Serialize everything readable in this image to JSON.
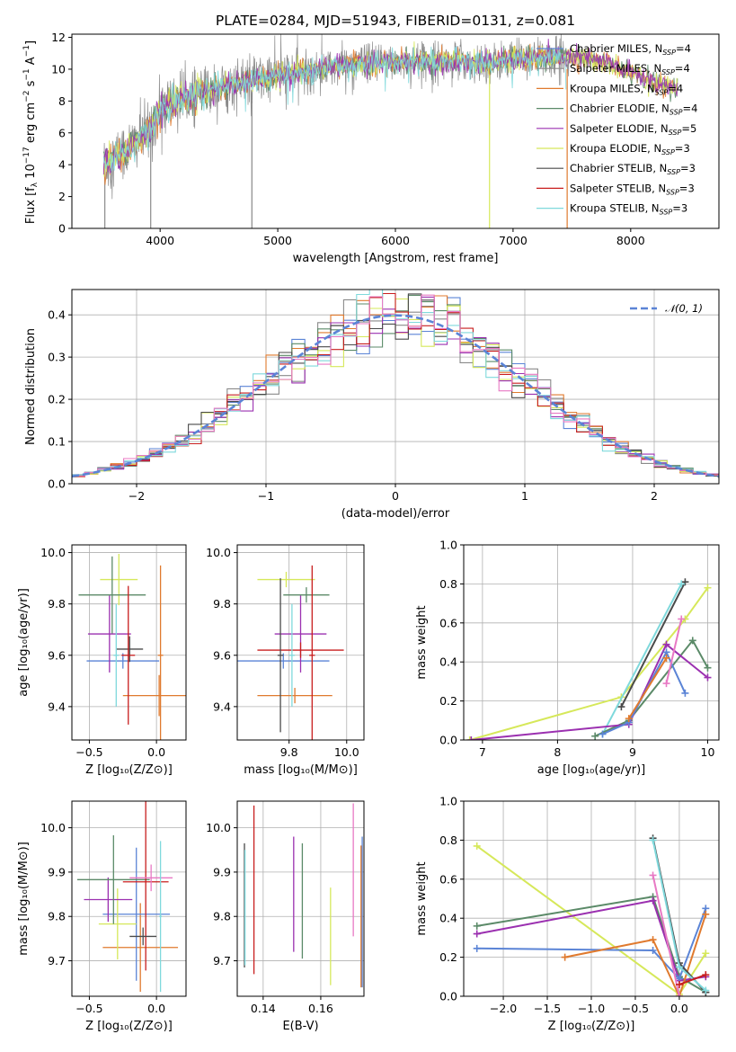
{
  "figure": {
    "title": "PLATE=0284, MJD=51943, FIBERID=0131, z=0.081"
  },
  "colors": {
    "chabrier_miles": "#5b84d6",
    "salpeter_miles": "#8a8a8a",
    "kroupa_miles": "#e07a2e",
    "chabrier_elodie": "#5b8a68",
    "salpeter_elodie": "#9b30b0",
    "kroupa_elodie": "#d6e85a",
    "chabrier_stelib": "#4a4a4a",
    "salpeter_stelib": "#c81e1e",
    "kroupa_stelib": "#7fd9dc",
    "normal_curve": "#5b84d6",
    "pink": "#e879c4"
  },
  "chart_data": [
    {
      "id": "spectrum",
      "type": "line",
      "xlabel": "wavelength [Angstrom, rest frame]",
      "ylabel": "Flux [f_λ 10^-17 erg cm^-2 s^-1 A^-1]",
      "ylabel_parts": {
        "a": "Flux [f",
        "sub1": "λ",
        "b": "10",
        "sup1": "−17",
        "c": " erg cm",
        "sup2": "−2",
        "d": " s",
        "sup3": "−1",
        "e": " A",
        "sup4": "−1",
        "f": "]"
      },
      "xlim": [
        3250,
        8750
      ],
      "ylim": [
        0,
        12.2
      ],
      "xticks": [
        "4000",
        "5000",
        "6000",
        "7000",
        "8000"
      ],
      "yticks": [
        "0",
        "2",
        "4",
        "6",
        "8",
        "10",
        "12"
      ],
      "grid": false,
      "legend_position": "right",
      "legend": [
        {
          "model": "Chabrier MILES",
          "n": "4",
          "color_key": "chabrier_miles"
        },
        {
          "model": "Salpeter MILES",
          "n": "4",
          "color_key": "salpeter_miles"
        },
        {
          "model": "Kroupa MILES",
          "n": "4",
          "color_key": "kroupa_miles"
        },
        {
          "model": "Chabrier ELODIE",
          "n": "4",
          "color_key": "chabrier_elodie"
        },
        {
          "model": "Salpeter ELODIE",
          "n": "5",
          "color_key": "salpeter_elodie"
        },
        {
          "model": "Kroupa ELODIE",
          "n": "3",
          "color_key": "kroupa_elodie"
        },
        {
          "model": "Chabrier STELIB",
          "n": "3",
          "color_key": "chabrier_stelib"
        },
        {
          "model": "Salpeter STELIB",
          "n": "3",
          "color_key": "salpeter_stelib"
        },
        {
          "model": "Kroupa STELIB",
          "n": "3",
          "color_key": "kroupa_stelib"
        }
      ],
      "legend_label_mid": ", N",
      "legend_label_sub": "SSP",
      "legend_label_eq": "=",
      "continuum": {
        "x": [
          3520,
          3600,
          3700,
          3800,
          3900,
          4000,
          4100,
          4200,
          4400,
          4600,
          4800,
          5000,
          5200,
          5500,
          5800,
          6000,
          6200,
          6500,
          6800,
          7000,
          7200,
          7400,
          7600,
          7800,
          8000,
          8200,
          8400
        ],
        "y": [
          4.0,
          4.4,
          4.8,
          5.5,
          6.1,
          7.3,
          7.9,
          8.2,
          8.6,
          9.0,
          9.3,
          9.6,
          9.8,
          10.2,
          10.4,
          10.4,
          10.5,
          10.5,
          10.4,
          10.6,
          10.7,
          10.8,
          10.7,
          10.4,
          9.8,
          9.2,
          8.8
        ]
      },
      "observed_range": [
        3520,
        7480
      ],
      "model_range": [
        3520,
        8400
      ]
    },
    {
      "id": "residuals",
      "type": "histogram",
      "xlabel": "(data-model)/error",
      "ylabel": "Normed distribution",
      "xlim": [
        -2.5,
        2.5
      ],
      "ylim": [
        0,
        0.46
      ],
      "xticks": [
        "−2",
        "−1",
        "0",
        "1",
        "2"
      ],
      "yticks": [
        "0.0",
        "0.1",
        "0.2",
        "0.3",
        "0.4"
      ],
      "grid": true,
      "legend_position": "top-right",
      "normal_legend": "𝒩(0, 1)",
      "bin_width": 0.1
    },
    {
      "id": "age_vs_Z",
      "type": "scatter",
      "xlabel": "Z [log₁₀(Z/Z⊙)]",
      "ylabel": "age  [log₁₀(age/yr)]",
      "xlim": [
        -0.63,
        0.22
      ],
      "ylim": [
        9.27,
        10.03
      ],
      "xticks": [
        "−0.5",
        "0.0"
      ],
      "yticks": [
        "9.4",
        "9.6",
        "9.8",
        "10.0"
      ],
      "grid": true,
      "points": [
        {
          "x": 0.02,
          "y": 9.443,
          "xerr": 0.27,
          "yerr": 0.08,
          "c": "kroupa_miles"
        },
        {
          "x": -0.25,
          "y": 9.578,
          "xerr": 0.27,
          "yerr": 0.03,
          "c": "chabrier_miles"
        },
        {
          "x": -0.28,
          "y": 9.895,
          "xerr": 0.14,
          "yerr": 0.1,
          "c": "kroupa_elodie"
        },
        {
          "x": -0.35,
          "y": 9.683,
          "xerr": 0.16,
          "yerr": 0.15,
          "c": "salpeter_elodie"
        },
        {
          "x": -0.2,
          "y": 9.624,
          "xerr": 0.1,
          "yerr": 0.05,
          "c": "chabrier_stelib"
        },
        {
          "x": -0.33,
          "y": 9.835,
          "xerr": 0.25,
          "yerr": 0.15,
          "c": "chabrier_elodie"
        },
        {
          "x": -0.21,
          "y": 9.6,
          "xerr": 0.05,
          "yerr": 0.27,
          "c": "salpeter_stelib"
        },
        {
          "x": 0.03,
          "y": 9.6,
          "xerr": 0.02,
          "yerr": 0.35,
          "c": "kroupa_miles"
        },
        {
          "x": -0.3,
          "y": 9.6,
          "xerr": 0.02,
          "yerr": 0.2,
          "c": "kroupa_stelib"
        }
      ]
    },
    {
      "id": "age_vs_mass",
      "type": "scatter",
      "xlabel": "mass [log₁₀(M/M⊙)]",
      "ylabel": "",
      "xlim": [
        9.62,
        10.06
      ],
      "ylim": [
        9.27,
        10.03
      ],
      "xticks": [
        "9.8",
        "10.0"
      ],
      "yticks": [
        "9.4",
        "9.6",
        "9.8",
        "10.0"
      ],
      "grid": true,
      "points": [
        {
          "x": 9.82,
          "y": 9.443,
          "xerr": 0.13,
          "yerr": 0.03,
          "c": "kroupa_miles"
        },
        {
          "x": 9.78,
          "y": 9.578,
          "xerr": 0.16,
          "yerr": 0.03,
          "c": "chabrier_miles"
        },
        {
          "x": 9.79,
          "y": 9.895,
          "xerr": 0.1,
          "yerr": 0.03,
          "c": "kroupa_elodie"
        },
        {
          "x": 9.84,
          "y": 9.683,
          "xerr": 0.09,
          "yerr": 0.15,
          "c": "salpeter_elodie"
        },
        {
          "x": 9.84,
          "y": 9.62,
          "xerr": 0.15,
          "yerr": 0.03,
          "c": "salpeter_stelib"
        },
        {
          "x": 9.86,
          "y": 9.835,
          "xerr": 0.08,
          "yerr": 0.03,
          "c": "chabrier_elodie"
        },
        {
          "x": 9.77,
          "y": 9.6,
          "xerr": 0.01,
          "yerr": 0.3,
          "c": "chabrier_stelib"
        },
        {
          "x": 9.88,
          "y": 9.6,
          "xerr": 0.01,
          "yerr": 0.35,
          "c": "salpeter_stelib"
        },
        {
          "x": 9.81,
          "y": 9.6,
          "xerr": 0.01,
          "yerr": 0.2,
          "c": "kroupa_stelib"
        }
      ]
    },
    {
      "id": "weight_vs_age",
      "type": "line",
      "xlabel": "age  [log₁₀(age/yr)]",
      "ylabel": "mass weight",
      "xlim": [
        6.75,
        10.15
      ],
      "ylim": [
        0,
        1.0
      ],
      "xticks": [
        "7",
        "8",
        "9",
        "10"
      ],
      "yticks": [
        "0.0",
        "0.2",
        "0.4",
        "0.6",
        "0.8",
        "1.0"
      ],
      "grid": true,
      "series": [
        {
          "c": "kroupa_elodie",
          "x": [
            6.83,
            8.85,
            9.7,
            10.0
          ],
          "y": [
            0.0,
            0.22,
            0.62,
            0.78
          ]
        },
        {
          "c": "chabrier_stelib",
          "x": [
            8.85,
            9.7
          ],
          "y": [
            0.17,
            0.81
          ]
        },
        {
          "c": "kroupa_stelib",
          "x": [
            8.6,
            9.65
          ],
          "y": [
            0.03,
            0.8
          ]
        },
        {
          "c": "chabrier_elodie",
          "x": [
            8.5,
            8.95,
            9.8,
            10.0
          ],
          "y": [
            0.02,
            0.1,
            0.51,
            0.37
          ]
        },
        {
          "c": "salpeter_elodie",
          "x": [
            6.85,
            8.95,
            9.45,
            10.0
          ],
          "y": [
            0.0,
            0.08,
            0.49,
            0.32
          ]
        },
        {
          "c": "chabrier_miles",
          "x": [
            8.6,
            8.95,
            9.45,
            9.7
          ],
          "y": [
            0.03,
            0.09,
            0.45,
            0.24
          ]
        },
        {
          "c": "kroupa_miles",
          "x": [
            8.95,
            9.45
          ],
          "y": [
            0.11,
            0.42
          ]
        },
        {
          "c": "pink",
          "x": [
            9.45,
            9.65
          ],
          "y": [
            0.29,
            0.62
          ]
        }
      ]
    },
    {
      "id": "mass_vs_Z",
      "type": "scatter",
      "xlabel": "Z [log₁₀(Z/Z⊙)]",
      "ylabel": "mass [log₁₀(M/M⊙)]",
      "xlim": [
        -0.63,
        0.22
      ],
      "ylim": [
        9.62,
        10.06
      ],
      "xticks": [
        "−0.5",
        "0.0"
      ],
      "yticks": [
        "9.7",
        "9.8",
        "9.9",
        "10.0"
      ],
      "grid": true,
      "points": [
        {
          "x": -0.12,
          "y": 9.73,
          "xerr": 0.28,
          "yerr": 0.1,
          "c": "kroupa_miles"
        },
        {
          "x": -0.15,
          "y": 9.805,
          "xerr": 0.25,
          "yerr": 0.15,
          "c": "chabrier_miles"
        },
        {
          "x": -0.29,
          "y": 9.783,
          "xerr": 0.14,
          "yerr": 0.08,
          "c": "kroupa_elodie"
        },
        {
          "x": -0.36,
          "y": 9.838,
          "xerr": 0.18,
          "yerr": 0.05,
          "c": "salpeter_elodie"
        },
        {
          "x": -0.32,
          "y": 9.883,
          "xerr": 0.27,
          "yerr": 0.1,
          "c": "chabrier_elodie"
        },
        {
          "x": -0.08,
          "y": 9.878,
          "xerr": 0.17,
          "yerr": 0.2,
          "c": "salpeter_stelib"
        },
        {
          "x": -0.1,
          "y": 9.755,
          "xerr": 0.1,
          "yerr": 0.02,
          "c": "chabrier_stelib"
        },
        {
          "x": -0.04,
          "y": 9.887,
          "xerr": 0.16,
          "yerr": 0.03,
          "c": "pink"
        },
        {
          "x": 0.03,
          "y": 9.8,
          "xerr": 0.01,
          "yerr": 0.17,
          "c": "kroupa_stelib"
        }
      ]
    },
    {
      "id": "mass_vs_ebv",
      "type": "scatter",
      "xlabel": "E(B-V)",
      "ylabel": "",
      "xlim": [
        0.131,
        0.175
      ],
      "ylim": [
        9.62,
        10.06
      ],
      "xticks": [
        "0.14",
        "0.16"
      ],
      "yticks": [
        "9.7",
        "9.8",
        "9.9",
        "10.0"
      ],
      "grid": true,
      "points": [
        {
          "x": 0.1335,
          "y": 9.825,
          "xerr": 0,
          "yerr": 0.14,
          "c": "chabrier_stelib"
        },
        {
          "x": 0.1337,
          "y": 9.82,
          "xerr": 0,
          "yerr": 0.13,
          "c": "kroupa_stelib"
        },
        {
          "x": 0.1368,
          "y": 9.86,
          "xerr": 0,
          "yerr": 0.19,
          "c": "salpeter_stelib"
        },
        {
          "x": 0.1506,
          "y": 9.85,
          "xerr": 0,
          "yerr": 0.13,
          "c": "salpeter_elodie"
        },
        {
          "x": 0.1536,
          "y": 9.835,
          "xerr": 0,
          "yerr": 0.13,
          "c": "chabrier_elodie"
        },
        {
          "x": 0.1634,
          "y": 9.755,
          "xerr": 0,
          "yerr": 0.11,
          "c": "kroupa_elodie"
        },
        {
          "x": 0.1713,
          "y": 9.905,
          "xerr": 0,
          "yerr": 0.15,
          "c": "pink"
        },
        {
          "x": 0.174,
          "y": 9.8,
          "xerr": 0,
          "yerr": 0.16,
          "c": "kroupa_miles"
        },
        {
          "x": 0.1744,
          "y": 9.81,
          "xerr": 0,
          "yerr": 0.17,
          "c": "chabrier_miles"
        }
      ]
    },
    {
      "id": "weight_vs_Z",
      "type": "line",
      "xlabel": "Z [log₁₀(Z/Z⊙)]",
      "ylabel": "mass weight",
      "xlim": [
        -2.45,
        0.45
      ],
      "ylim": [
        0,
        1.0
      ],
      "xticks": [
        "−2.0",
        "−1.5",
        "−1.0",
        "−0.5",
        "0.0"
      ],
      "yticks": [
        "0.0",
        "0.2",
        "0.4",
        "0.6",
        "0.8",
        "1.0"
      ],
      "grid": true,
      "series": [
        {
          "c": "kroupa_elodie",
          "x": [
            -2.3,
            0.0,
            0.3
          ],
          "y": [
            0.77,
            0.01,
            0.22
          ]
        },
        {
          "c": "chabrier_elodie",
          "x": [
            -2.3,
            -0.3,
            0.0,
            0.3
          ],
          "y": [
            0.36,
            0.51,
            0.1,
            0.02
          ]
        },
        {
          "c": "salpeter_elodie",
          "x": [
            -2.3,
            -0.3,
            0.0,
            0.3
          ],
          "y": [
            0.32,
            0.49,
            0.08,
            0.1
          ]
        },
        {
          "c": "chabrier_miles",
          "x": [
            -2.3,
            -0.3,
            0.0,
            0.3
          ],
          "y": [
            0.245,
            0.235,
            0.09,
            0.45
          ]
        },
        {
          "c": "kroupa_miles",
          "x": [
            -1.3,
            -0.3,
            0.0,
            0.3
          ],
          "y": [
            0.2,
            0.29,
            0.0,
            0.42
          ]
        },
        {
          "c": "chabrier_stelib",
          "x": [
            -0.3,
            0.0,
            0.3
          ],
          "y": [
            0.81,
            0.17,
            0.02
          ]
        },
        {
          "c": "kroupa_stelib",
          "x": [
            -0.3,
            0.0,
            0.3
          ],
          "y": [
            0.8,
            0.15,
            0.03
          ]
        },
        {
          "c": "pink",
          "x": [
            -0.3,
            0.0
          ],
          "y": [
            0.62,
            0.0
          ]
        },
        {
          "c": "salpeter_stelib",
          "x": [
            0.0,
            0.3
          ],
          "y": [
            0.06,
            0.11
          ]
        }
      ]
    }
  ]
}
